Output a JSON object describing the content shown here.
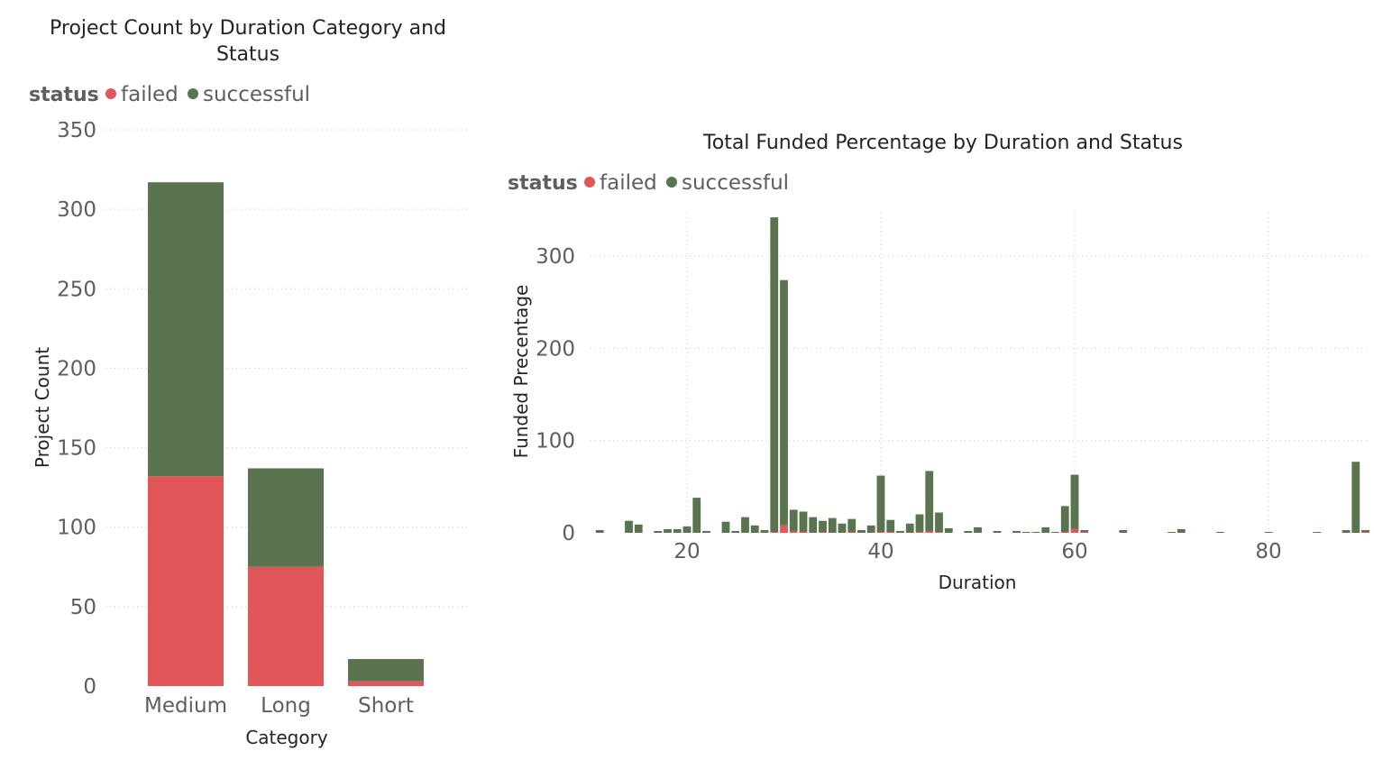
{
  "colors": {
    "failed": "#E15759",
    "successful": "#59744F"
  },
  "legend": {
    "title": "status",
    "items": [
      "failed",
      "successful"
    ]
  },
  "chart_data": [
    {
      "type": "bar",
      "stacked": true,
      "title": "Project Count by Duration Category and Status",
      "title_lines": [
        "Project Count by Duration Category and",
        "Status"
      ],
      "xlabel": "Category",
      "ylabel": "Project Count",
      "ylim": [
        0,
        350
      ],
      "yticks": [
        "0",
        "50",
        "100",
        "150",
        "200",
        "250",
        "300",
        "350"
      ],
      "grid": true,
      "legend_position": "top-left",
      "categories": [
        "Medium",
        "Long",
        "Short"
      ],
      "series": [
        {
          "name": "failed",
          "values": [
            132,
            75,
            3
          ]
        },
        {
          "name": "successful",
          "values": [
            185,
            62,
            14
          ]
        }
      ]
    },
    {
      "type": "bar",
      "stacked": true,
      "title": "Total Funded Percentage by Duration and Status",
      "xlabel": "Duration",
      "ylabel": "Funded Precentage",
      "xlim": [
        10,
        90
      ],
      "xticks": [
        "20",
        "40",
        "60",
        "80"
      ],
      "ylim": [
        0,
        340
      ],
      "yticks": [
        "0",
        "100",
        "200",
        "300"
      ],
      "grid": true,
      "legend_position": "top-left",
      "x": [
        11,
        14,
        15,
        17,
        18,
        19,
        20,
        21,
        22,
        24,
        25,
        26,
        27,
        28,
        29,
        30,
        31,
        32,
        33,
        34,
        35,
        36,
        37,
        38,
        39,
        40,
        41,
        42,
        43,
        44,
        45,
        46,
        47,
        49,
        50,
        52,
        54,
        55,
        56,
        57,
        58,
        59,
        60,
        61,
        65,
        70,
        71,
        75,
        80,
        85,
        88,
        89,
        90
      ],
      "series": [
        {
          "name": "failed",
          "values": [
            0,
            0,
            0,
            0,
            0,
            0,
            0,
            0,
            0,
            0,
            0,
            0,
            0,
            0,
            1,
            8,
            2,
            1,
            0,
            1,
            0,
            0,
            1,
            0,
            0,
            1,
            1,
            0,
            0,
            1,
            2,
            1,
            0,
            0,
            0,
            0,
            0,
            0,
            0,
            0,
            0,
            1,
            4,
            1,
            0,
            0,
            0,
            0,
            0,
            0,
            0,
            0,
            1
          ]
        },
        {
          "name": "successful",
          "values": [
            3,
            13,
            9,
            2,
            4,
            4,
            7,
            38,
            2,
            12,
            2,
            17,
            8,
            3,
            341,
            266,
            23,
            22,
            17,
            12,
            16,
            10,
            14,
            3,
            8,
            61,
            13,
            2,
            10,
            19,
            65,
            21,
            5,
            2,
            6,
            2,
            2,
            1,
            1,
            6,
            1,
            28,
            59,
            2,
            3,
            1,
            4,
            1,
            1,
            1,
            3,
            77,
            2
          ]
        }
      ]
    }
  ]
}
